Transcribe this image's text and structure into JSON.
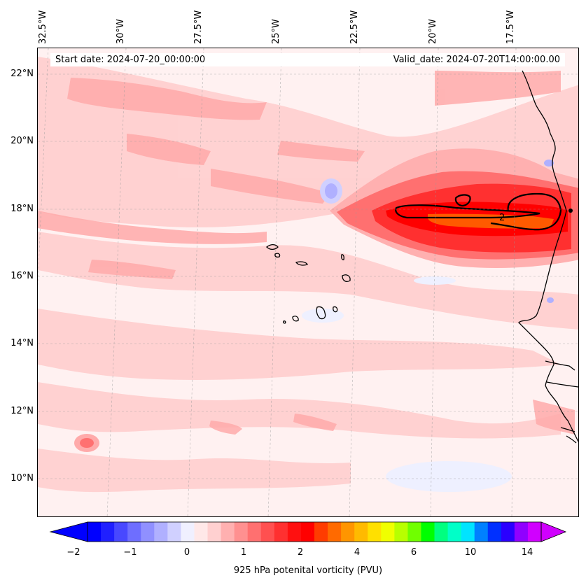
{
  "map": {
    "start_date": "Start date: 2024-07-20_00:00:00",
    "valid_date": "Valid_date: 2024-07-20T14:00:00.00",
    "lon_labels": [
      "32.5°W",
      "30°W",
      "27.5°W",
      "25°W",
      "22.5°W",
      "20°W",
      "17.5°W"
    ],
    "lat_labels": [
      "22°N",
      "20°N",
      "18°N",
      "16°N",
      "14°N",
      "12°N",
      "10°N"
    ],
    "contour_label": "2",
    "colors": {
      "background": "#fff1f1",
      "light_pink": "#ffd0d0",
      "pink": "#ffaaaa",
      "red_mid": "#ff6060",
      "red": "#ff2020",
      "red_strong": "#ff0000",
      "orange_core": "#ff5a00",
      "light_blue": "#b8b8ff",
      "pale_blue": "#eef0ff",
      "coast": "#000000"
    }
  },
  "colorbar": {
    "label": "925 hPa potenital vorticity (PVU)",
    "tick_labels": [
      "−2",
      "−1",
      "0",
      "1",
      "2",
      "4",
      "6",
      "10",
      "14"
    ],
    "colors": [
      "#0000ff",
      "#2020ff",
      "#4848ff",
      "#6e6eff",
      "#9090ff",
      "#b0b0ff",
      "#d0d0ff",
      "#f0f0ff",
      "#ffe8e8",
      "#ffd0d0",
      "#ffb0b0",
      "#ff9090",
      "#ff7070",
      "#ff5050",
      "#ff3030",
      "#ff1010",
      "#ff0000",
      "#ff3c00",
      "#ff6a00",
      "#ff9500",
      "#ffba00",
      "#ffe000",
      "#f0ff00",
      "#b8ff00",
      "#70ff00",
      "#00ff00",
      "#00ff80",
      "#00ffc8",
      "#00e4ff",
      "#0080ff",
      "#0030ff",
      "#2a00ff",
      "#9000ff",
      "#d000ff"
    ]
  }
}
